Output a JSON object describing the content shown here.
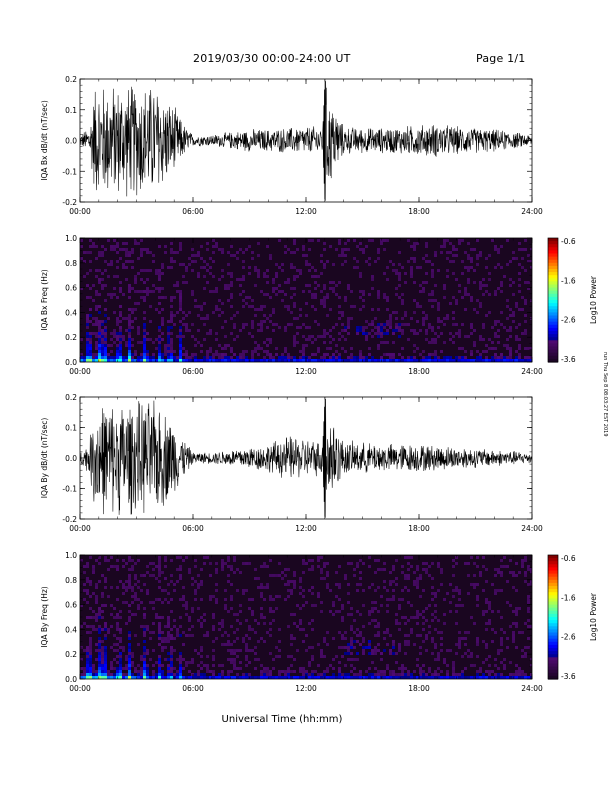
{
  "header": {
    "title": "2019/03/30  00:00-24:00 UT",
    "page_label": "Page 1/1"
  },
  "side_note": "run Thu Sep 8 08:03:27 EST 2019",
  "xlabel": "Universal Time (hh:mm)",
  "colors": {
    "waveform": "#000000",
    "spectrogram_background": "#1a0620"
  },
  "chart_data": [
    {
      "type": "line",
      "ylabel": "IQA Bx dB/dt (nT/sec)",
      "xlim": [
        0,
        24
      ],
      "ylim": [
        -0.2,
        0.2
      ],
      "xticks": [
        "00:00",
        "06:00",
        "12:00",
        "18:00",
        "24:00"
      ],
      "yticks": [
        "-0.2",
        "-0.1",
        "0.0",
        "0.1",
        "0.2"
      ],
      "series": [
        {
          "x": [
            0,
            0.5,
            0.8,
            1.0,
            1.2,
            1.5,
            2.0,
            2.5,
            3.0,
            3.5,
            4.0,
            4.5,
            5.0,
            5.5,
            6.0,
            7.0,
            8.0,
            9.0,
            10.0,
            11.0,
            12.0,
            12.9,
            13.0,
            14.0,
            15.0,
            16.0,
            17.0,
            18.0,
            19.0,
            20.0,
            21.0,
            22.0,
            23.0,
            24.0
          ],
          "y_envelope": [
            0.02,
            0.05,
            0.2,
            0.2,
            0.2,
            0.2,
            0.2,
            0.2,
            0.2,
            0.2,
            0.2,
            0.16,
            0.12,
            0.06,
            0.02,
            0.02,
            0.03,
            0.04,
            0.04,
            0.045,
            0.05,
            0.05,
            0.2,
            0.05,
            0.045,
            0.045,
            0.05,
            0.055,
            0.06,
            0.05,
            0.045,
            0.04,
            0.03,
            0.02
          ]
        }
      ]
    },
    {
      "type": "heatmap",
      "ylabel": "IQA Bx Freq (Hz)",
      "xlim": [
        0,
        24
      ],
      "ylim": [
        0.0,
        1.0
      ],
      "xticks": [
        "00:00",
        "06:00",
        "12:00",
        "18:00",
        "24:00"
      ],
      "yticks": [
        "0.0",
        "0.2",
        "0.4",
        "0.6",
        "0.8",
        "1.0"
      ],
      "colorbar": {
        "label": "Log10 Power",
        "range": [
          -3.6,
          -0.6
        ],
        "ticks": [
          "-0.6",
          "-1.6",
          "-2.6",
          "-3.6"
        ]
      },
      "event_bursts_hours": [
        0.4,
        0.9,
        1.2,
        2.0,
        2.6,
        3.4,
        4.2,
        4.7,
        5.3
      ],
      "background_level": -3.4,
      "low_freq_band_level": -2.2
    },
    {
      "type": "line",
      "ylabel": "IQA By dB/dt (nT/sec)",
      "xlim": [
        0,
        24
      ],
      "ylim": [
        -0.2,
        0.2
      ],
      "xticks": [
        "00:00",
        "06:00",
        "12:00",
        "18:00",
        "24:00"
      ],
      "yticks": [
        "-0.2",
        "-0.1",
        "0.0",
        "0.1",
        "0.2"
      ],
      "series": [
        {
          "x": [
            0,
            0.5,
            0.8,
            1.0,
            1.2,
            1.5,
            2.0,
            2.5,
            3.0,
            3.5,
            4.0,
            4.5,
            5.0,
            5.5,
            6.0,
            7.0,
            8.0,
            9.0,
            10.0,
            11.0,
            12.0,
            12.9,
            13.0,
            14.0,
            15.0,
            16.0,
            17.0,
            18.0,
            19.0,
            20.0,
            21.0,
            22.0,
            23.0,
            24.0
          ],
          "y_envelope": [
            0.02,
            0.06,
            0.2,
            0.2,
            0.2,
            0.2,
            0.2,
            0.2,
            0.2,
            0.2,
            0.2,
            0.17,
            0.13,
            0.07,
            0.02,
            0.02,
            0.03,
            0.04,
            0.05,
            0.08,
            0.07,
            0.06,
            0.2,
            0.06,
            0.055,
            0.05,
            0.05,
            0.05,
            0.045,
            0.04,
            0.035,
            0.03,
            0.025,
            0.02
          ]
        }
      ]
    },
    {
      "type": "heatmap",
      "ylabel": "IQA By Freq (Hz)",
      "xlim": [
        0,
        24
      ],
      "ylim": [
        0.0,
        1.0
      ],
      "xticks": [
        "00:00",
        "06:00",
        "12:00",
        "18:00",
        "24:00"
      ],
      "yticks": [
        "0.0",
        "0.2",
        "0.4",
        "0.6",
        "0.8",
        "1.0"
      ],
      "colorbar": {
        "label": "Log10 Power",
        "range": [
          -3.6,
          -0.6
        ],
        "ticks": [
          "-0.6",
          "-1.6",
          "-2.6",
          "-3.6"
        ]
      },
      "event_bursts_hours": [
        0.4,
        0.9,
        1.2,
        2.0,
        2.6,
        3.4,
        4.2,
        4.7,
        5.3
      ],
      "background_level": -3.4,
      "low_freq_band_level": -2.3
    }
  ]
}
